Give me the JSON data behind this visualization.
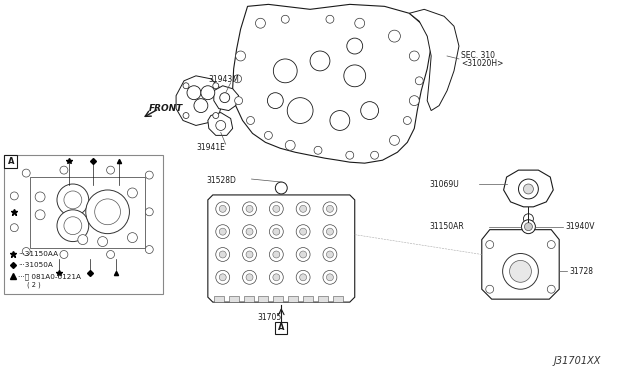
{
  "background_color": "#ffffff",
  "fig_width": 6.4,
  "fig_height": 3.72,
  "dpi": 100,
  "diagram_code": "J31701XX",
  "labels": {
    "sec310_line1": "SEC. 310",
    "sec310_line2": "<31020H>",
    "part_31943M": "31943M",
    "part_31941E": "31941E",
    "part_31528D": "31528D",
    "part_31705": "31705",
    "part_31069U": "31069U",
    "part_31150AR": "31150AR",
    "part_31940V": "31940V",
    "part_31728": "31728",
    "front": "FRONT",
    "legend_star_text": "···31150AA",
    "legend_diamond_text": "···31050A",
    "legend_triangle_text": "···Ⓑ 081A0-6121A",
    "legend_triangle_sub": "( 2 )"
  },
  "colors": {
    "line": "#1a1a1a",
    "text": "#1a1a1a",
    "bg": "#ffffff",
    "fill": "#f2f2f2",
    "box_border": "#666666",
    "leader": "#555555"
  }
}
